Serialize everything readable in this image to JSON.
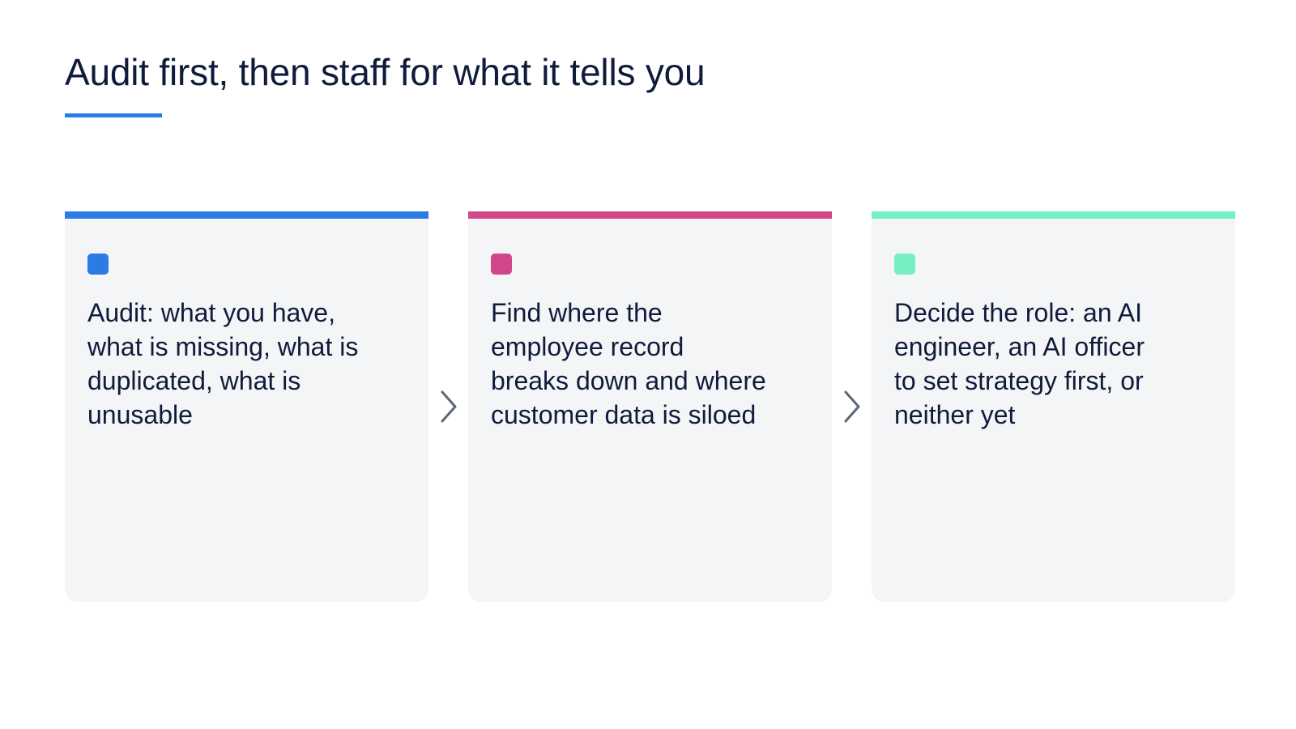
{
  "slide": {
    "title": "Audit first, then staff for what it tells you",
    "accent_color": "#2b7be4"
  },
  "steps": [
    {
      "text": "Audit: what you have, what is missing, what is duplicated, what is unusable",
      "color": "#2b7be4"
    },
    {
      "text": "Find where the employee record breaks down and where customer data is siloed",
      "color": "#d2468a"
    },
    {
      "text": "Decide the role: an AI engineer, an AI officer to set strategy first, or neither yet",
      "color": "#74f0c1"
    }
  ],
  "connectors": [
    {
      "icon": "chevron-right-icon"
    },
    {
      "icon": "chevron-right-icon"
    }
  ],
  "colors": {
    "card_background": "#f4f5f7",
    "text": "#0f1b3a",
    "arrow": "#5d6676"
  }
}
